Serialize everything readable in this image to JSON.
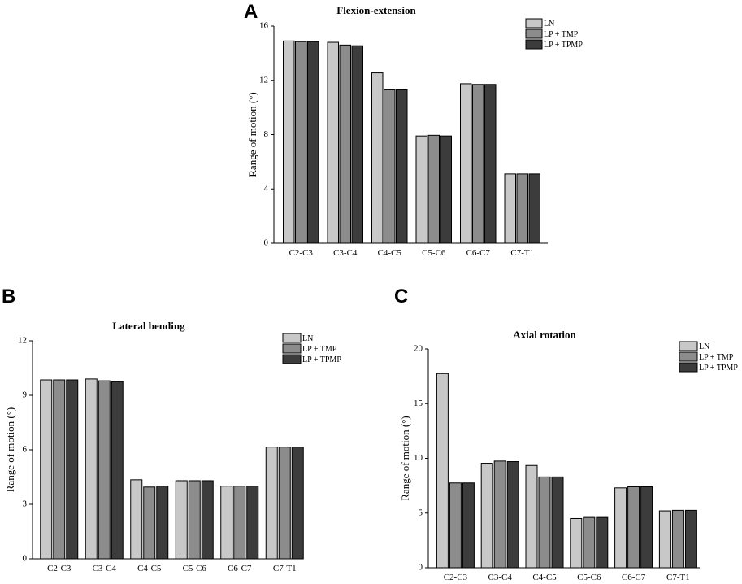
{
  "panel_letters": {
    "a": "A",
    "b": "B",
    "c": "C"
  },
  "chart_data": [
    {
      "type": "bar",
      "title": "Flexion-extension",
      "xlabel": "",
      "ylabel": "Range of motion (°)",
      "ylim": [
        0,
        16
      ],
      "yticks": [
        0,
        4,
        8,
        12,
        16
      ],
      "categories": [
        "C2-C3",
        "C3-C4",
        "C4-C5",
        "C5-C6",
        "C6-C7",
        "C7-T1"
      ],
      "series": [
        {
          "name": "LN",
          "values": [
            14.9,
            14.8,
            12.55,
            7.9,
            11.75,
            5.1
          ]
        },
        {
          "name": "LP + TMP",
          "values": [
            14.85,
            14.6,
            11.3,
            7.95,
            11.7,
            5.1
          ]
        },
        {
          "name": "LP + TPMP",
          "values": [
            14.85,
            14.55,
            11.3,
            7.9,
            11.7,
            5.1
          ]
        }
      ],
      "legend": "top-right"
    },
    {
      "type": "bar",
      "title": "Lateral bending",
      "xlabel": "",
      "ylabel": "Range of motion (°)",
      "ylim": [
        0,
        12
      ],
      "yticks": [
        0,
        3,
        6,
        9,
        12
      ],
      "categories": [
        "C2-C3",
        "C3-C4",
        "C4-C5",
        "C5-C6",
        "C6-C7",
        "C7-T1"
      ],
      "series": [
        {
          "name": "LN",
          "values": [
            9.85,
            9.9,
            4.35,
            4.3,
            4.0,
            6.15
          ]
        },
        {
          "name": "LP + TMP",
          "values": [
            9.85,
            9.8,
            3.95,
            4.3,
            4.0,
            6.15
          ]
        },
        {
          "name": "LP + TPMP",
          "values": [
            9.85,
            9.75,
            4.0,
            4.3,
            4.0,
            6.15
          ]
        }
      ],
      "legend": "top-right"
    },
    {
      "type": "bar",
      "title": "Axial rotation",
      "xlabel": "",
      "ylabel": "Range of motion (°)",
      "ylim": [
        0,
        20
      ],
      "yticks": [
        0,
        5,
        10,
        15,
        20
      ],
      "categories": [
        "C2-C3",
        "C3-C4",
        "C4-C5",
        "C5-C6",
        "C6-C7",
        "C7-T1"
      ],
      "series": [
        {
          "name": "LN",
          "values": [
            17.75,
            9.55,
            9.35,
            4.5,
            7.3,
            5.2
          ]
        },
        {
          "name": "LP + TMP",
          "values": [
            7.75,
            9.75,
            8.3,
            4.6,
            7.4,
            5.25
          ]
        },
        {
          "name": "LP + TPMP",
          "values": [
            7.75,
            9.7,
            8.3,
            4.6,
            7.4,
            5.25
          ]
        }
      ],
      "legend": "top-right"
    }
  ],
  "colors": {
    "LN": "#c8c8c8",
    "LP + TMP": "#8c8c8c",
    "LP + TPMP": "#3c3c3c",
    "axis": "#000000"
  }
}
